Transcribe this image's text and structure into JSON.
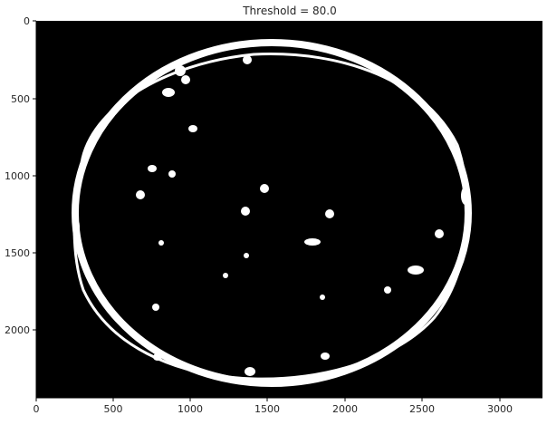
{
  "figure": {
    "title": "Threshold = 80.0"
  },
  "axes": {
    "x_ticks": [
      "0",
      "500",
      "1000",
      "1500",
      "2000",
      "2500",
      "3000"
    ],
    "y_ticks": [
      "0",
      "500",
      "1000",
      "1500",
      "2000"
    ]
  },
  "image": {
    "description_colors": {
      "background": "#000000",
      "foreground": "#ffffff"
    }
  }
}
